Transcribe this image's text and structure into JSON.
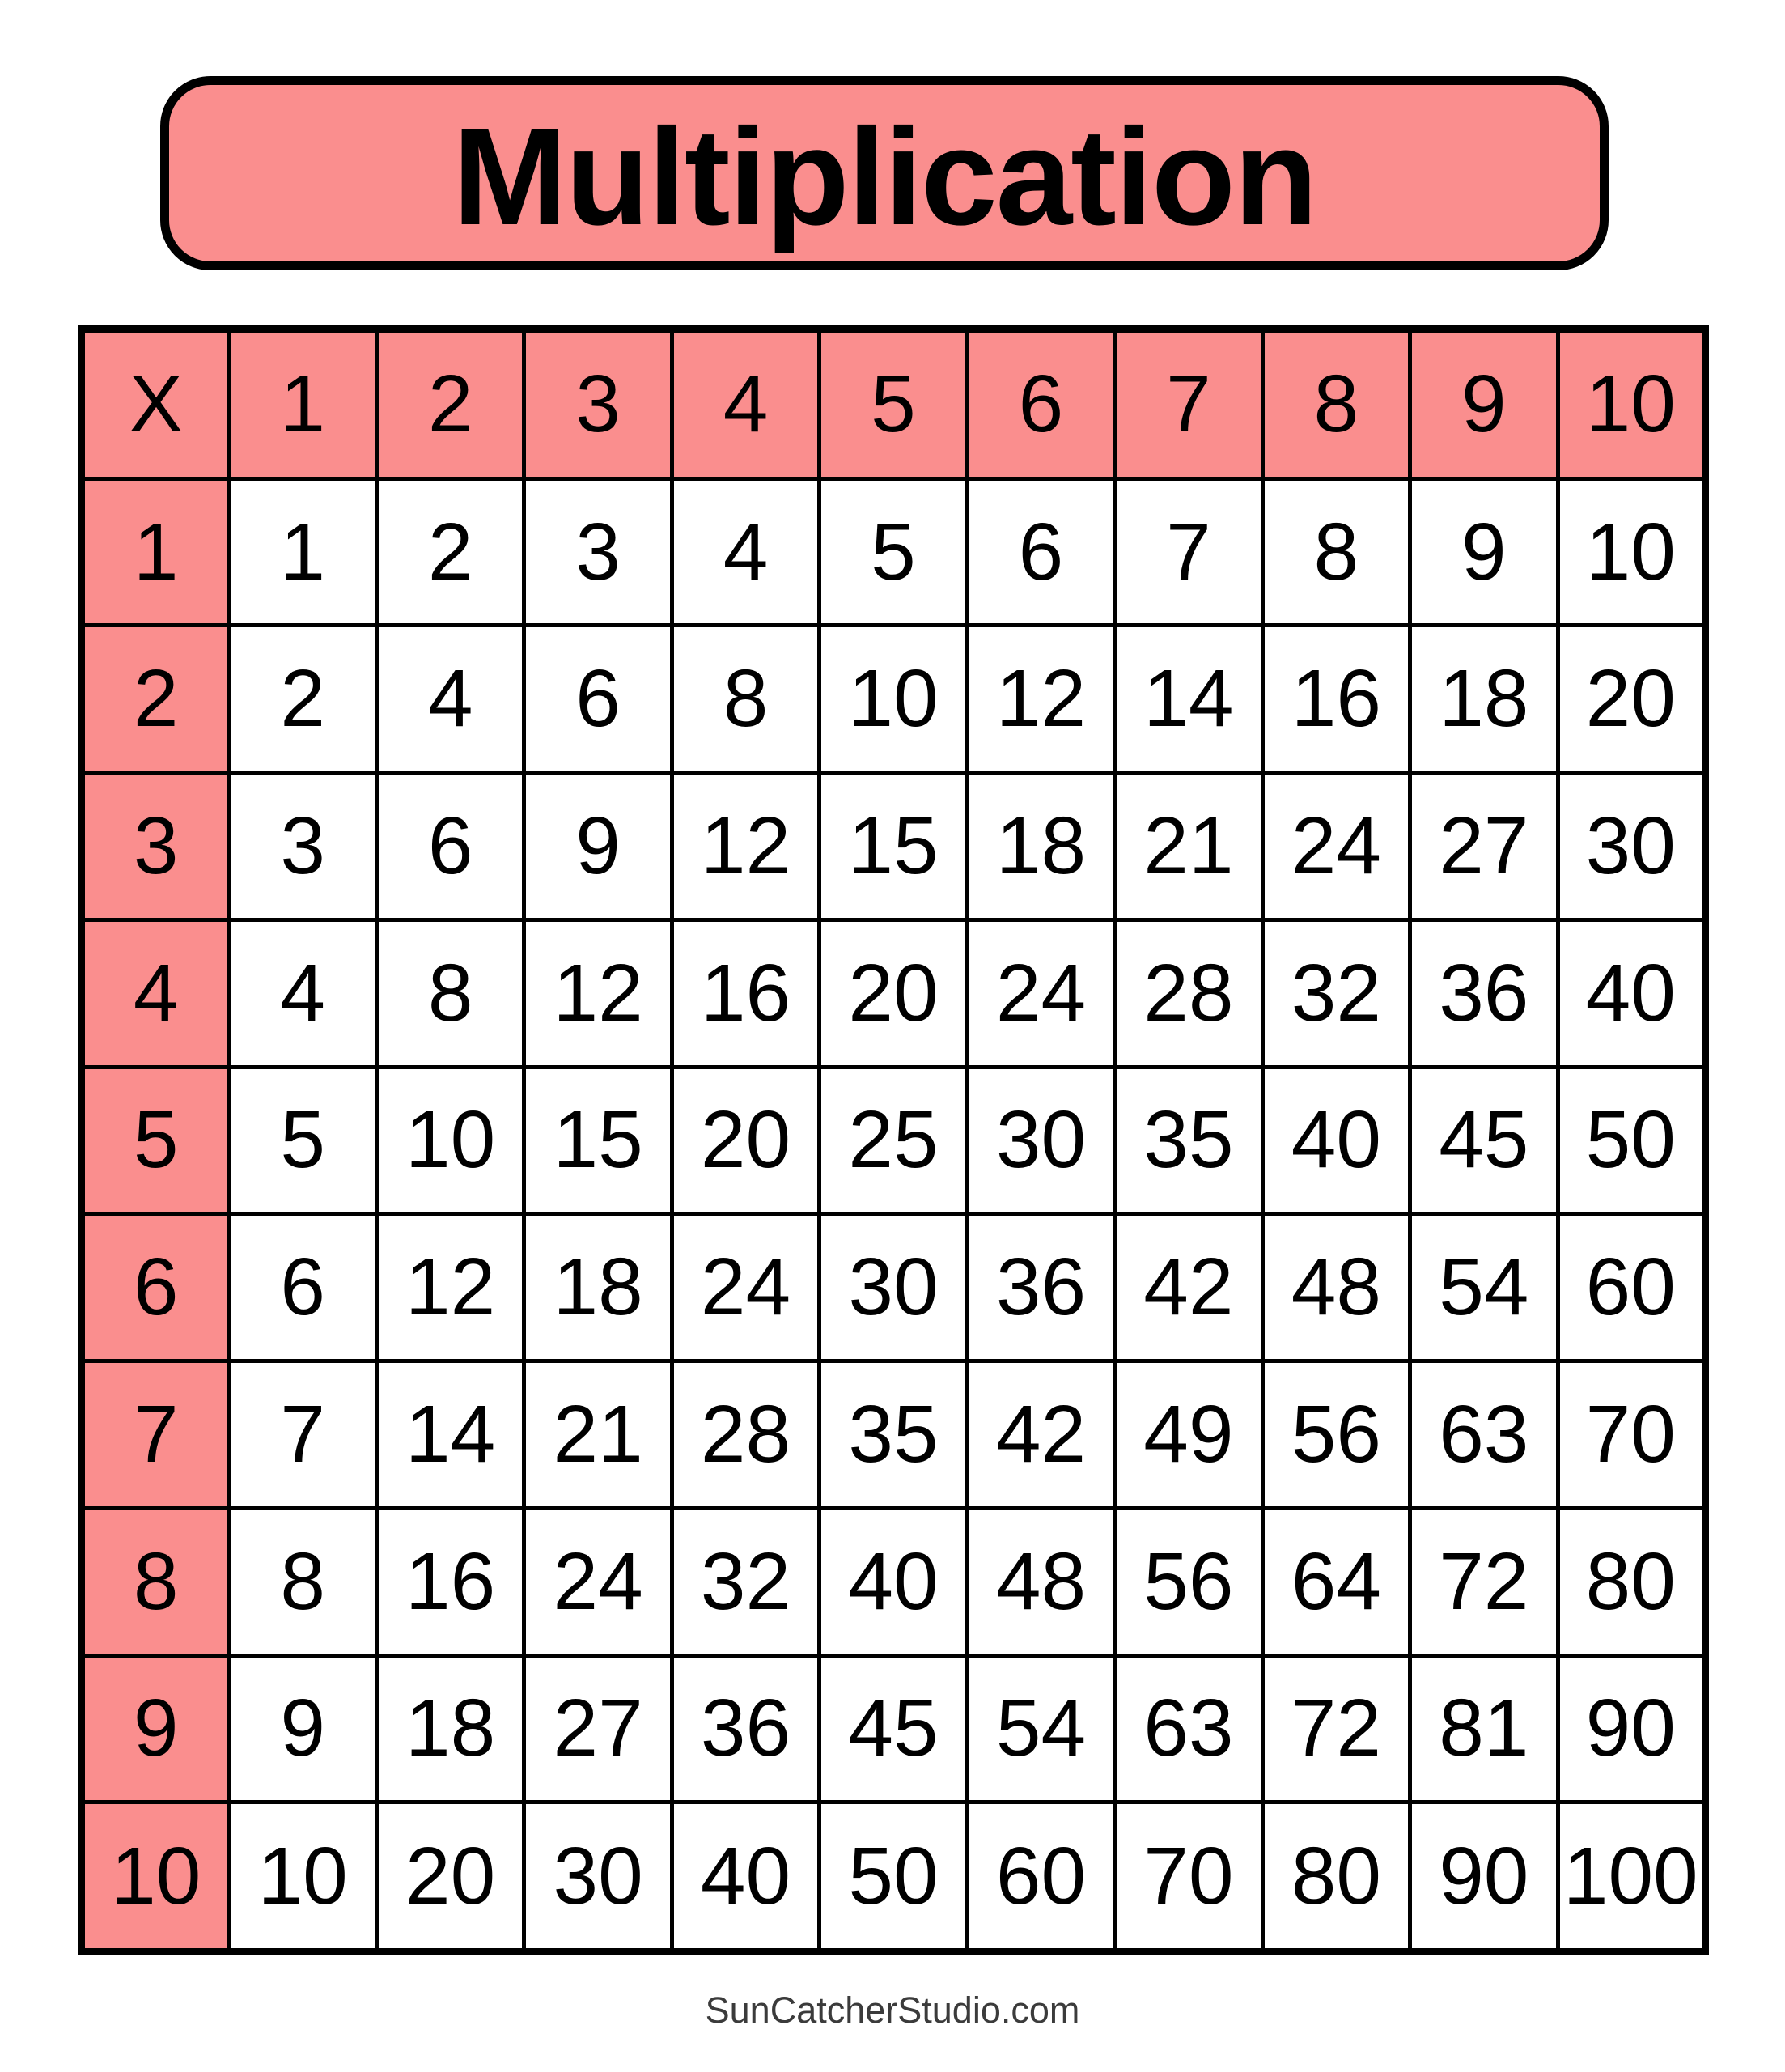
{
  "title": "Multiplication",
  "footer": "SunCatcherStudio.com",
  "colors": {
    "accent_pink": "#FA8E8E",
    "border_black": "#000000",
    "cell_white": "#FFFFFF",
    "footer_gray": "#3B3B3B"
  },
  "chart_data": {
    "type": "table",
    "title": "Multiplication",
    "corner_label": "X",
    "col_headers": [
      "1",
      "2",
      "3",
      "4",
      "5",
      "6",
      "7",
      "8",
      "9",
      "10"
    ],
    "row_headers": [
      "1",
      "2",
      "3",
      "4",
      "5",
      "6",
      "7",
      "8",
      "9",
      "10"
    ],
    "values": [
      [
        1,
        2,
        3,
        4,
        5,
        6,
        7,
        8,
        9,
        10
      ],
      [
        2,
        4,
        6,
        8,
        10,
        12,
        14,
        16,
        18,
        20
      ],
      [
        3,
        6,
        9,
        12,
        15,
        18,
        21,
        24,
        27,
        30
      ],
      [
        4,
        8,
        12,
        16,
        20,
        24,
        28,
        32,
        36,
        40
      ],
      [
        5,
        10,
        15,
        20,
        25,
        30,
        35,
        40,
        45,
        50
      ],
      [
        6,
        12,
        18,
        24,
        30,
        36,
        42,
        48,
        54,
        60
      ],
      [
        7,
        14,
        21,
        28,
        35,
        42,
        49,
        56,
        63,
        70
      ],
      [
        8,
        16,
        24,
        32,
        40,
        48,
        56,
        64,
        72,
        80
      ],
      [
        9,
        18,
        27,
        36,
        45,
        54,
        63,
        72,
        81,
        90
      ],
      [
        10,
        20,
        30,
        40,
        50,
        60,
        70,
        80,
        90,
        100
      ]
    ],
    "layout": {
      "grid": true,
      "header_row_fill": "#FA8E8E",
      "header_col_fill": "#FA8E8E",
      "body_fill": "#FFFFFF"
    }
  }
}
